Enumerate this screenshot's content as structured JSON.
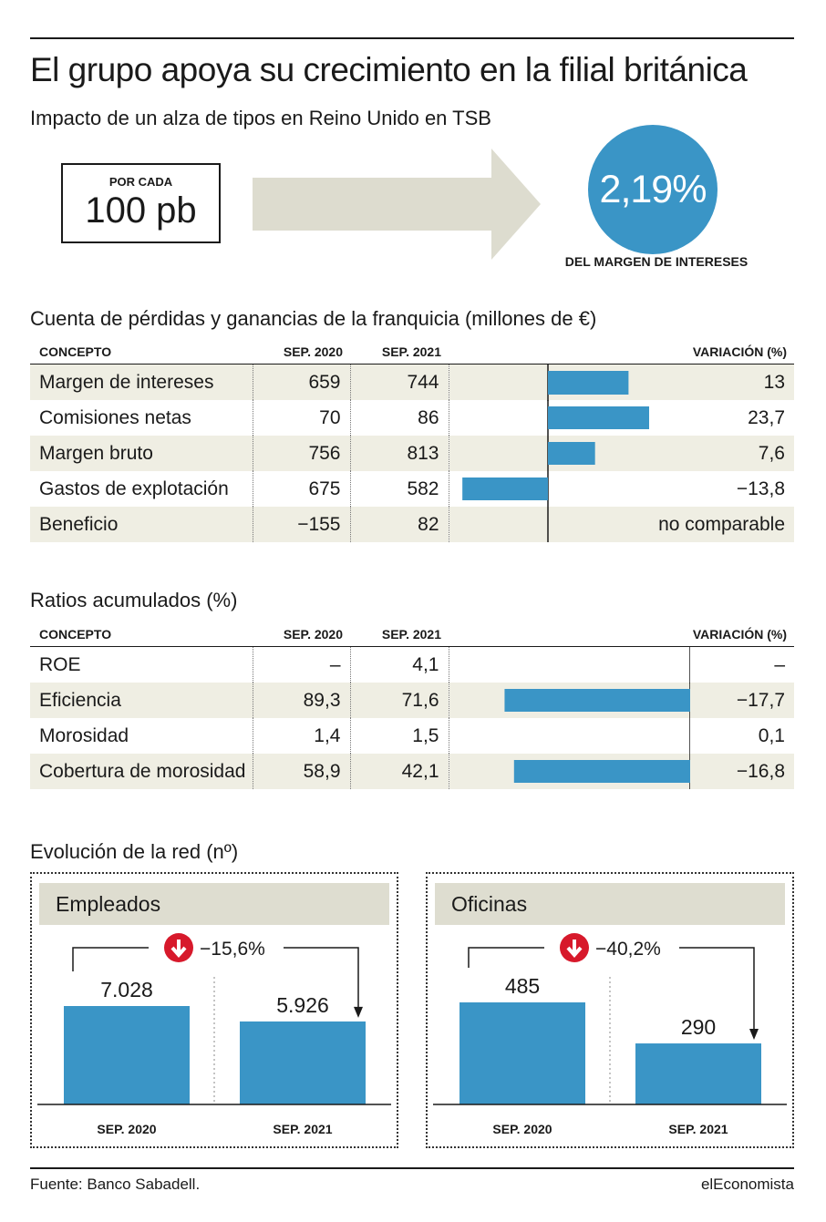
{
  "title": "El grupo apoya su crecimiento en la filial británica",
  "subtitle": "Impacto de un alza de tipos en Reino Unido en TSB",
  "impact": {
    "box_label": "POR CADA",
    "box_value": "100 pb",
    "result_value": "2,19%",
    "result_label": "DEL MARGEN DE INTERESES",
    "colors": {
      "arrow": "#dddccf",
      "circle": "#3a95c6"
    }
  },
  "table1": {
    "title": "Cuenta de pérdidas y ganancias de la franquicia (millones de €)",
    "headers": {
      "concept": "CONCEPTO",
      "c1": "SEP. 2020",
      "c2": "SEP. 2021",
      "var": "VARIACIÓN (%)"
    },
    "rows": [
      {
        "name": "Margen de intereses",
        "c1": "659",
        "c2": "744",
        "var": "13"
      },
      {
        "name": "Comisiones netas",
        "c1": "70",
        "c2": "86",
        "var": "23,7"
      },
      {
        "name": "Margen bruto",
        "c1": "756",
        "c2": "813",
        "var": "7,6"
      },
      {
        "name": "Gastos de explotación",
        "c1": "675",
        "c2": "582",
        "var": "−13,8"
      },
      {
        "name": "Beneficio",
        "c1": "−155",
        "c2": "82",
        "var": "no comparable"
      }
    ]
  },
  "table2": {
    "title": "Ratios acumulados (%)",
    "headers": {
      "concept": "CONCEPTO",
      "c1": "SEP. 2020",
      "c2": "SEP. 2021",
      "var": "VARIACIÓN (%)"
    },
    "rows": [
      {
        "name": "ROE",
        "c1": "–",
        "c2": "4,1",
        "var": "–"
      },
      {
        "name": "Eficiencia",
        "c1": "89,3",
        "c2": "71,6",
        "var": "−17,7"
      },
      {
        "name": "Morosidad",
        "c1": "1,4",
        "c2": "1,5",
        "var": "0,1"
      },
      {
        "name": "Cobertura de morosidad",
        "c1": "58,9",
        "c2": "42,1",
        "var": "−16,8"
      }
    ]
  },
  "network": {
    "title": "Evolución de la red (nº)",
    "panels": [
      {
        "title": "Empleados",
        "change": "−15,6%",
        "labels": [
          "7.028",
          "5.926"
        ],
        "cats": [
          "SEP. 2020",
          "SEP. 2021"
        ]
      },
      {
        "title": "Oficinas",
        "change": "−40,2%",
        "labels": [
          "485",
          "290"
        ],
        "cats": [
          "SEP. 2020",
          "SEP. 2021"
        ]
      }
    ]
  },
  "chart_data": [
    {
      "type": "bar",
      "title": "Cuenta de pérdidas y ganancias de la franquicia (millones de €)",
      "ylabel": "VARIACIÓN (%)",
      "categories": [
        "Margen de intereses",
        "Comisiones netas",
        "Margen bruto",
        "Gastos de explotación",
        "Beneficio"
      ],
      "values": [
        13,
        23.7,
        7.6,
        -13.8,
        null
      ]
    },
    {
      "type": "bar",
      "title": "Ratios acumulados (%)",
      "ylabel": "VARIACIÓN (%)",
      "categories": [
        "ROE",
        "Eficiencia",
        "Morosidad",
        "Cobertura de morosidad"
      ],
      "values": [
        null,
        -17.7,
        0.1,
        -16.8
      ]
    },
    {
      "type": "bar",
      "title": "Empleados",
      "categories": [
        "SEP. 2020",
        "SEP. 2021"
      ],
      "values": [
        7028,
        5926
      ]
    },
    {
      "type": "bar",
      "title": "Oficinas",
      "categories": [
        "SEP. 2020",
        "SEP. 2021"
      ],
      "values": [
        485,
        290
      ]
    }
  ],
  "footer": {
    "source": "Fuente: Banco Sabadell.",
    "brand": "elEconomista"
  },
  "colors": {
    "bar": "#3a95c6",
    "shade": "#efeee3",
    "panel_header": "#deddd0",
    "down_icon": "#d7192b"
  }
}
